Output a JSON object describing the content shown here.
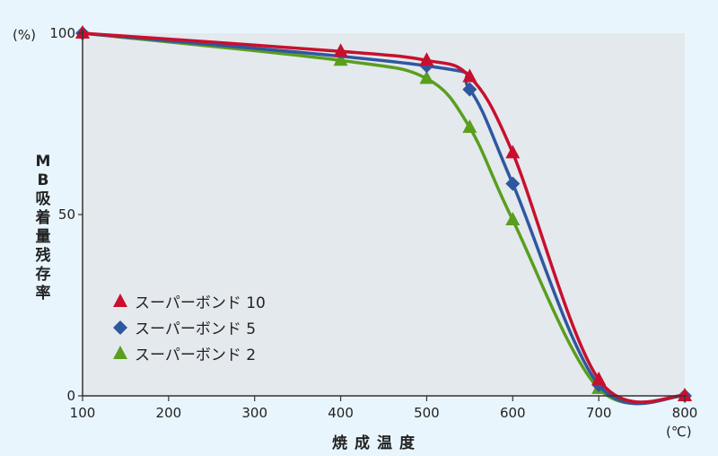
{
  "chart_data": {
    "type": "line",
    "title": "",
    "xlabel": "焼成温度",
    "xunit": "(℃)",
    "ylabel": "MB吸着量残存率",
    "yunit": "(%)",
    "xlim": [
      100,
      800
    ],
    "ylim": [
      0,
      100
    ],
    "xticks": [
      "100",
      "200",
      "300",
      "400",
      "500",
      "600",
      "700",
      "800"
    ],
    "yticks": [
      "0",
      "50",
      "100"
    ],
    "grid": false,
    "legend_position": "bottom-left",
    "series": [
      {
        "name": "スーパーボンド 10",
        "color": "#c8102e",
        "marker": "triangle",
        "x": [
          100,
          400,
          500,
          550,
          600,
          700,
          800
        ],
        "y": [
          100,
          95,
          92.5,
          88,
          67,
          4.5,
          0
        ]
      },
      {
        "name": "スーパーボンド 5",
        "color": "#2f57a0",
        "marker": "diamond",
        "x": [
          100,
          500,
          550,
          600,
          700,
          800
        ],
        "y": [
          100,
          91,
          84.5,
          58.5,
          3,
          0
        ]
      },
      {
        "name": "スーパーボンド 2",
        "color": "#5a9e1e",
        "marker": "triangle",
        "x": [
          100,
          400,
          500,
          550,
          600,
          700,
          800
        ],
        "y": [
          100,
          92.5,
          87.5,
          74,
          48.5,
          2,
          0
        ]
      }
    ]
  }
}
